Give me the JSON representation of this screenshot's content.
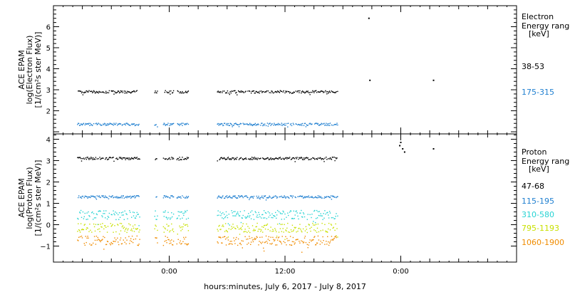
{
  "chart_data": [
    {
      "type": "scatter",
      "panel": "electron",
      "ylabel": [
        "ACE EPAM",
        "log(Electron Flux)",
        "[1/(cm²s ster MeV)]"
      ],
      "ylim": [
        0.9,
        7.0
      ],
      "yticks": [
        1,
        2,
        3,
        4,
        5,
        6
      ],
      "ytick_labels": [
        "",
        "2",
        "3",
        "4",
        "5",
        "6"
      ],
      "legend_title": [
        "Electron",
        "Energy range",
        "[keV]"
      ],
      "series": [
        {
          "name": "38-53",
          "color": "#000000",
          "level": 2.9,
          "extra_points": [
            {
              "x": 20.7,
              "y": 6.4
            },
            {
              "x": 20.8,
              "y": 3.45
            },
            {
              "x": 27.4,
              "y": 3.45
            }
          ]
        },
        {
          "name": "175-315",
          "color": "#1f7fd0",
          "level": 1.35,
          "extra_points": []
        }
      ]
    },
    {
      "type": "scatter",
      "panel": "proton",
      "ylabel": [
        "ACE EPAM",
        "log(Proton Flux)",
        "[1/(cm²s ster MeV)]"
      ],
      "ylim": [
        -1.75,
        4.25
      ],
      "yticks": [
        -1,
        0,
        1,
        2,
        3,
        4
      ],
      "ytick_labels": [
        "−1",
        "0",
        "1",
        "2",
        "3",
        "4"
      ],
      "legend_title": [
        "Proton",
        "Energy range",
        "[keV]"
      ],
      "series": [
        {
          "name": "47-68",
          "color": "#000000",
          "level": 3.1,
          "extra_points": [
            {
              "x": 23.9,
              "y": 3.7
            },
            {
              "x": 24.0,
              "y": 3.85
            },
            {
              "x": 24.2,
              "y": 3.55
            },
            {
              "x": 24.4,
              "y": 3.4
            },
            {
              "x": 27.4,
              "y": 3.55
            }
          ]
        },
        {
          "name": "115-195",
          "color": "#1f7fd0",
          "level": 1.3,
          "extra_points": []
        },
        {
          "name": "310-580",
          "color": "#27d3d3",
          "level": 0.45,
          "extra_points": []
        },
        {
          "name": "795-1193",
          "color": "#c8e000",
          "level": -0.15,
          "extra_points": []
        },
        {
          "name": "1060-1900",
          "color": "#f08c00",
          "level": -0.75,
          "extra_points": []
        }
      ]
    }
  ],
  "time_axis": {
    "xlabel": "hours:minutes, July  6, 2017 - July  8, 2017",
    "xlim": [
      -12,
      36
    ],
    "major_ticks": [
      0,
      12,
      24
    ],
    "major_labels": [
      "0:00",
      "12:00",
      "0:00"
    ],
    "data_segments": [
      [
        -9.5,
        -3.0
      ],
      [
        -1.5,
        -1.2
      ],
      [
        -0.6,
        0.5
      ],
      [
        0.8,
        2.0
      ],
      [
        5.0,
        17.5
      ]
    ]
  }
}
